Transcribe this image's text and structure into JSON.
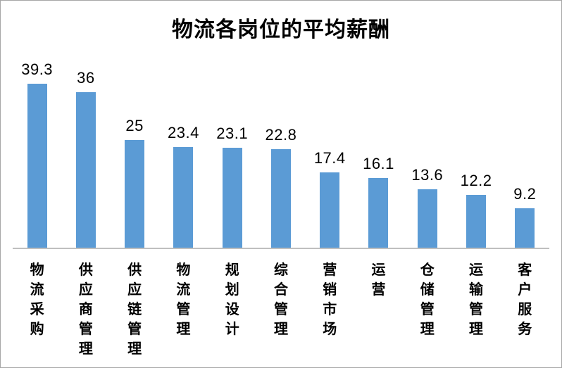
{
  "chart_data": {
    "type": "bar",
    "title": "物流各岗位的平均薪酬",
    "categories": [
      "物流采购",
      "供应商管理",
      "供应链管理",
      "物流管理",
      "规划设计",
      "综合管理",
      "营销市场",
      "运营",
      "仓储管理",
      "运输管理",
      "客户服务"
    ],
    "values": [
      39.3,
      36,
      25,
      23.4,
      23.1,
      22.8,
      17.4,
      16.1,
      13.6,
      12.2,
      9.2
    ],
    "xlabel": "",
    "ylabel": "",
    "ylim": [
      0,
      39.3
    ],
    "grid": false,
    "legend": false,
    "value_labels_shown": true,
    "bar_color": "#5b9bd5",
    "axis_line_color": "#bfbfbf",
    "text_color": "#000000",
    "frame_border_color": "#a6a6a6"
  }
}
